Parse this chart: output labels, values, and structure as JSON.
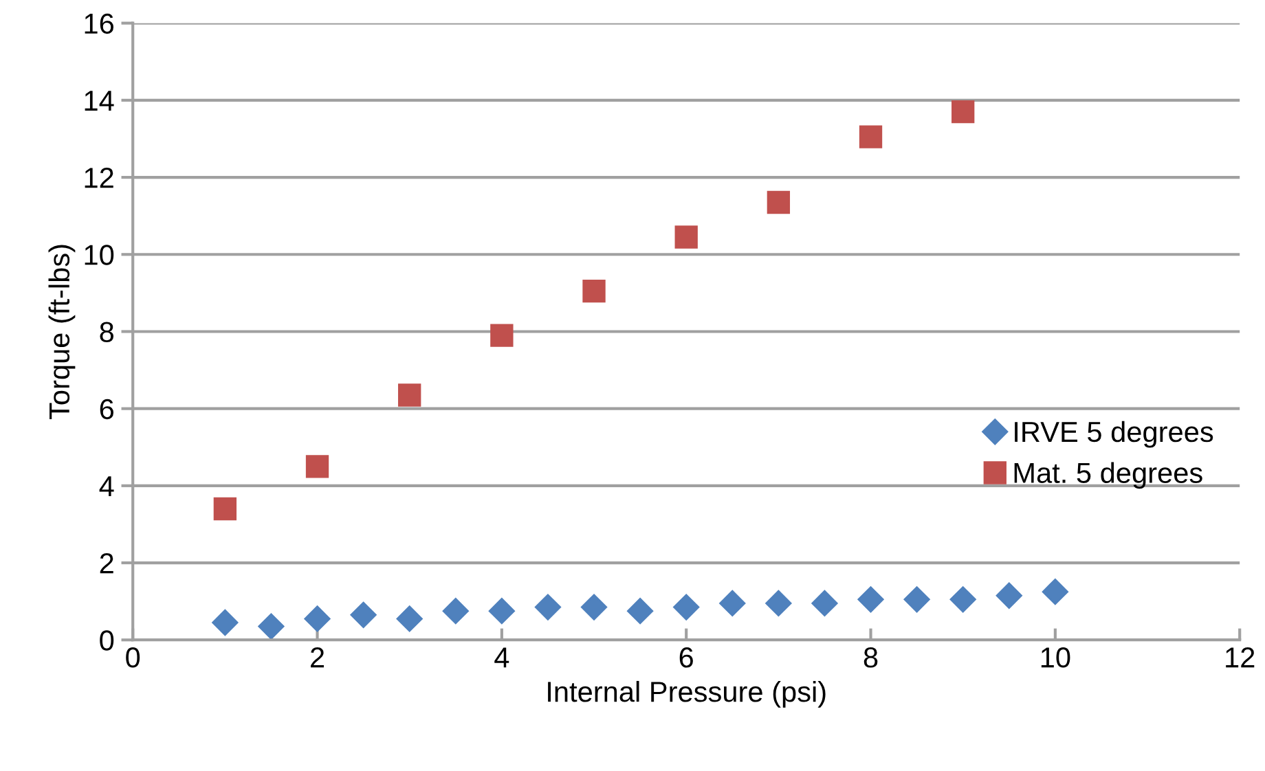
{
  "chart_data": {
    "type": "scatter",
    "xlabel": "Internal Pressure (psi)",
    "ylabel": "Torque (ft-lbs)",
    "xlim": [
      0,
      12
    ],
    "xticks": [
      0,
      2,
      4,
      6,
      8,
      10,
      12
    ],
    "ylim": [
      0,
      16
    ],
    "yticks": [
      0,
      2,
      4,
      6,
      8,
      10,
      12,
      14,
      16
    ],
    "grid": "y",
    "legend": "right",
    "series": [
      {
        "name": "IRVE 5 degrees",
        "color": "#4f81bd",
        "marker": "diamond",
        "x": [
          1,
          1.5,
          2,
          2.5,
          3,
          3.5,
          4,
          4.5,
          5,
          5.5,
          6,
          6.5,
          7,
          7.5,
          8,
          8.5,
          9,
          9.5,
          10
        ],
        "values": [
          0.45,
          0.35,
          0.55,
          0.65,
          0.55,
          0.75,
          0.75,
          0.85,
          0.85,
          0.75,
          0.85,
          0.95,
          0.95,
          0.95,
          1.05,
          1.05,
          1.05,
          1.15,
          1.25
        ]
      },
      {
        "name": "Mat. 5 degrees",
        "color": "#c0504d",
        "marker": "square",
        "x": [
          1,
          2,
          3,
          4,
          5,
          6,
          7,
          8,
          9
        ],
        "values": [
          3.4,
          4.5,
          6.35,
          7.9,
          9.05,
          10.45,
          11.35,
          13.05,
          13.7
        ]
      }
    ]
  }
}
